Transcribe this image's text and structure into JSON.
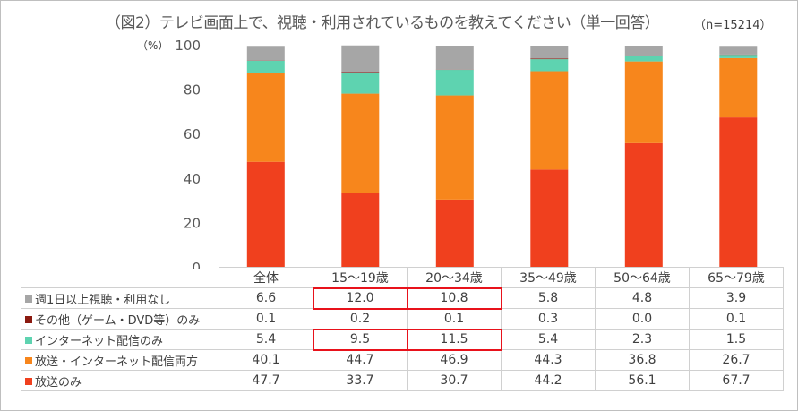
{
  "title": "（図2）テレビ画面上で、視聴・利用されているものを教えてください（単一回答）",
  "sample": "（n=15214）",
  "unit": "（%）",
  "chart_data": {
    "type": "bar",
    "stacked": true,
    "categories": [
      "全体",
      "15～19歳",
      "20～34歳",
      "35～49歳",
      "50～64歳",
      "65～79歳"
    ],
    "ylim": [
      0,
      100
    ],
    "yticks": [
      0,
      20,
      40,
      60,
      80,
      100
    ],
    "grid": false,
    "series": [
      {
        "name": "放送のみ",
        "color": "#f0401e",
        "values": [
          47.7,
          33.7,
          30.7,
          44.2,
          56.1,
          67.7
        ]
      },
      {
        "name": "放送・インターネット配信両方",
        "color": "#f7861c",
        "values": [
          40.1,
          44.7,
          46.9,
          44.3,
          36.8,
          26.7
        ]
      },
      {
        "name": "インターネット配信のみ",
        "color": "#5ed3b0",
        "values": [
          5.4,
          9.5,
          11.5,
          5.4,
          2.3,
          1.5
        ]
      },
      {
        "name": "その他（ゲーム・DVD等）のみ",
        "color": "#8b1a10",
        "values": [
          0.1,
          0.2,
          0.1,
          0.3,
          0.0,
          0.1
        ]
      },
      {
        "name": "週1日以上視聴・利用なし",
        "color": "#a6a6a6",
        "values": [
          6.6,
          12.0,
          10.8,
          5.8,
          4.8,
          3.9
        ]
      }
    ],
    "table_rows": [
      {
        "label": "週1日以上視聴・利用なし",
        "color": "#a6a6a6",
        "values": [
          "6.6",
          "12.0",
          "10.8",
          "5.8",
          "4.8",
          "3.9"
        ]
      },
      {
        "label": "その他（ゲーム・DVD等）のみ",
        "color": "#8b1a10",
        "values": [
          "0.1",
          "0.2",
          "0.1",
          "0.3",
          "0.0",
          "0.1"
        ]
      },
      {
        "label": "インターネット配信のみ",
        "color": "#5ed3b0",
        "values": [
          "5.4",
          "9.5",
          "11.5",
          "5.4",
          "2.3",
          "1.5"
        ]
      },
      {
        "label": "放送・インターネット配信両方",
        "color": "#f7861c",
        "values": [
          "40.1",
          "44.7",
          "46.9",
          "44.3",
          "36.8",
          "26.7"
        ]
      },
      {
        "label": "放送のみ",
        "color": "#f0401e",
        "values": [
          "47.7",
          "33.7",
          "30.7",
          "44.2",
          "56.1",
          "67.7"
        ]
      }
    ],
    "highlighted_cells": [
      {
        "row": "週1日以上視聴・利用なし",
        "category": "15～19歳"
      },
      {
        "row": "週1日以上視聴・利用なし",
        "category": "20～34歳"
      },
      {
        "row": "インターネット配信のみ",
        "category": "15～19歳"
      },
      {
        "row": "インターネット配信のみ",
        "category": "20～34歳"
      }
    ],
    "highlight_color": "#e8121b"
  }
}
